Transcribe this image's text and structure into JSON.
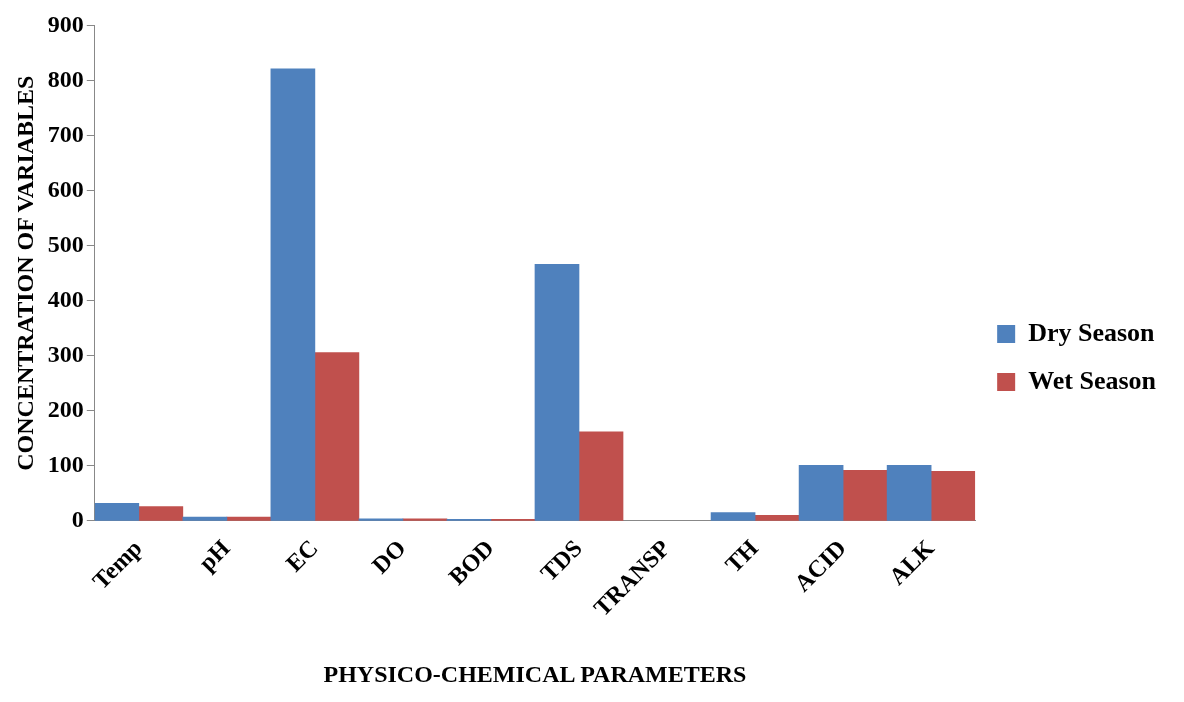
{
  "chart_data": {
    "type": "bar",
    "xlabel": "PHYSICO-CHEMICAL PARAMETERS",
    "ylabel": "CONCENTRATION OF VARIABLES",
    "categories": [
      "Temp",
      "pH",
      "EC",
      "DO",
      "BOD",
      "TDS",
      "TRANSP",
      "TH",
      "ACID",
      "ALK"
    ],
    "series": [
      {
        "name": "Dry Season",
        "color": "#4f81bd",
        "values": [
          32,
          7,
          821,
          4,
          3,
          466,
          null,
          15,
          101,
          101
        ]
      },
      {
        "name": "Wet Season",
        "color": "#c0504d",
        "values": [
          26,
          7,
          306,
          4,
          3,
          162,
          null,
          10,
          92,
          90
        ]
      }
    ],
    "ylim": [
      0,
      900
    ],
    "yticks": [
      0,
      100,
      200,
      300,
      400,
      500,
      600,
      700,
      800,
      900
    ],
    "grid": false,
    "legend": "right"
  }
}
